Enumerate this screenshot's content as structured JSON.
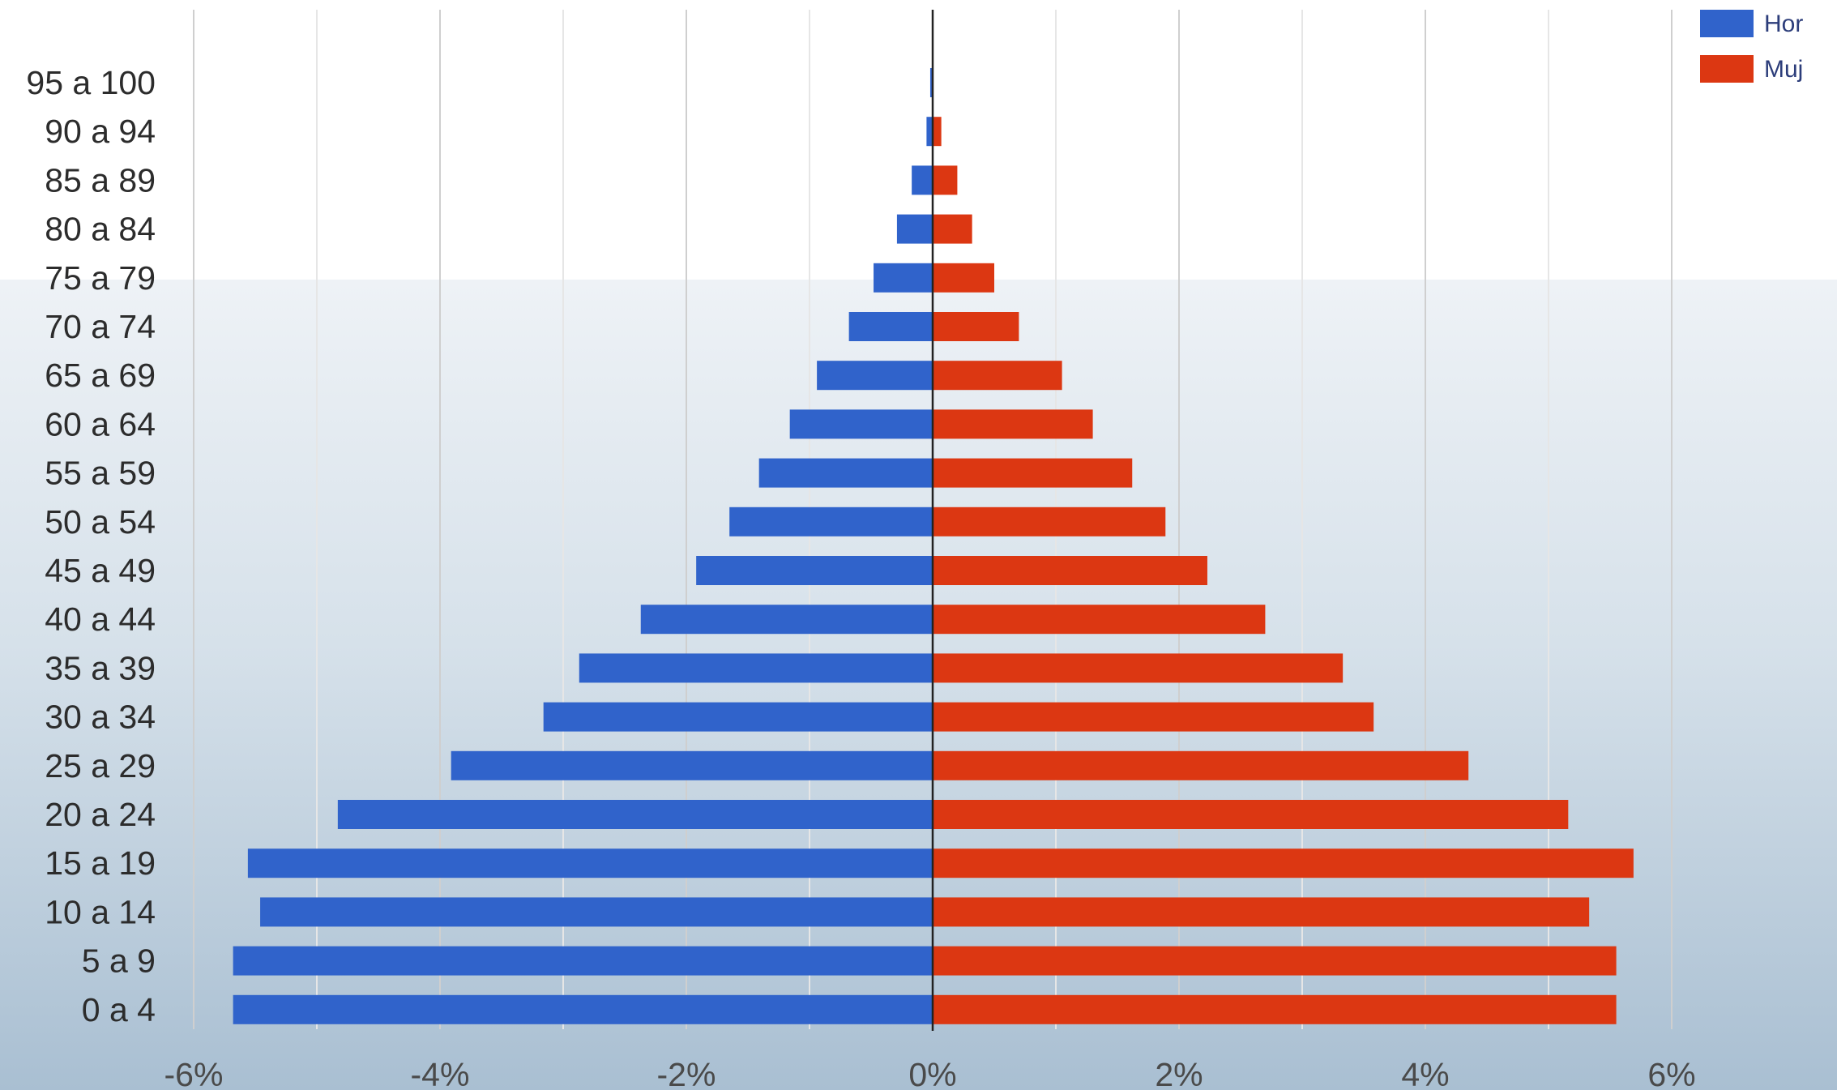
{
  "chart_data": {
    "type": "bar",
    "orientation": "horizontal",
    "layout": "population-pyramid",
    "categories": [
      "95 a 100",
      "90 a 94",
      "85 a 89",
      "80 a 84",
      "75 a 79",
      "70 a 74",
      "65 a 69",
      "60 a 64",
      "55 a 59",
      "50 a 54",
      "45 a 49",
      "40 a 44",
      "35 a 39",
      "30 a 34",
      "25 a 29",
      "20 a 24",
      "15 a 19",
      "10 a 14",
      "5 a 9",
      "0 a 4"
    ],
    "series": [
      {
        "name": "Hor",
        "color": "#3063cb",
        "side": "left",
        "values": [
          0.02,
          0.05,
          0.17,
          0.29,
          0.48,
          0.68,
          0.94,
          1.16,
          1.41,
          1.65,
          1.92,
          2.37,
          2.87,
          3.16,
          3.91,
          4.83,
          5.56,
          5.46,
          5.68,
          5.68
        ]
      },
      {
        "name": "Muj",
        "color": "#dc3712",
        "side": "right",
        "values": [
          0.0,
          0.07,
          0.2,
          0.32,
          0.5,
          0.7,
          1.05,
          1.3,
          1.62,
          1.89,
          2.23,
          2.7,
          3.33,
          3.58,
          4.35,
          5.16,
          5.69,
          5.33,
          5.55,
          5.55
        ]
      }
    ],
    "x_ticks": [
      "-6%",
      "-4%",
      "-2%",
      "0%",
      "2%",
      "4%",
      "6%"
    ],
    "xlim": [
      -6,
      7
    ],
    "grid": true,
    "legend": "top-right"
  }
}
